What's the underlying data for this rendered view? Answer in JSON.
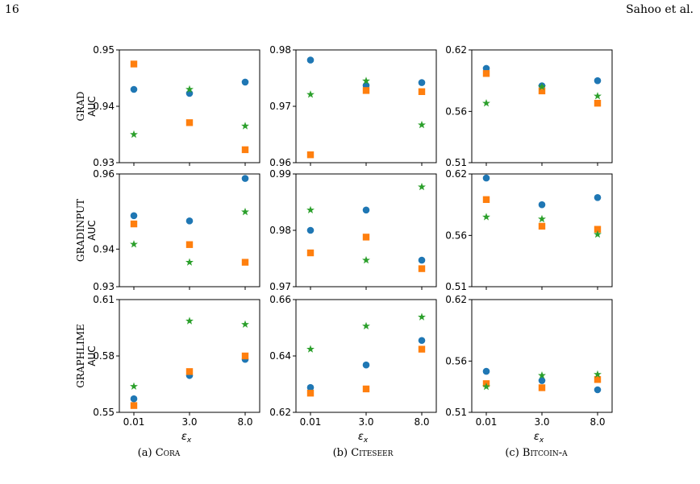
{
  "header": {
    "page_number": "16",
    "authors": "Sahoo et al."
  },
  "captions": [
    {
      "prefix": "(a) ",
      "name": "Cora"
    },
    {
      "prefix": "(b) ",
      "name": "Citeseer"
    },
    {
      "prefix": "(c) ",
      "name": "Bitcoin-α"
    }
  ],
  "colors": {
    "blue": "#1f77b4",
    "orange": "#ff7f0e",
    "green": "#2ca02c"
  },
  "chart_data": {
    "type": "scatter",
    "x_categories": [
      "0.01",
      "3.0",
      "8.0"
    ],
    "xlabel": "εx",
    "row_labels": [
      "GRAD",
      "GRADINPUT",
      "GRAPHLIME"
    ],
    "ylabel": "AUC",
    "series_markers": {
      "blue": "circle",
      "orange": "square",
      "green": "star"
    },
    "panels": [
      {
        "row": 0,
        "col": 0,
        "ylim": [
          0.93,
          0.95
        ],
        "yticks": [
          "0.93",
          "0.94",
          "0.95"
        ],
        "series": [
          {
            "color": "blue",
            "values": [
              0.943,
              0.9423,
              0.9443
            ]
          },
          {
            "color": "orange",
            "values": [
              0.9475,
              0.9371,
              0.9323
            ]
          },
          {
            "color": "green",
            "values": [
              0.935,
              0.943,
              0.9365
            ]
          }
        ]
      },
      {
        "row": 0,
        "col": 1,
        "ylim": [
          0.96,
          0.98
        ],
        "yticks": [
          "0.96",
          "0.97",
          "0.98"
        ],
        "series": [
          {
            "color": "blue",
            "values": [
              0.9782,
              0.9737,
              0.9742
            ]
          },
          {
            "color": "orange",
            "values": [
              0.9614,
              0.9728,
              0.9726
            ]
          },
          {
            "color": "green",
            "values": [
              0.9721,
              0.9745,
              0.9667
            ]
          }
        ]
      },
      {
        "row": 0,
        "col": 2,
        "ylim": [
          0.51,
          0.62
        ],
        "yticks": [
          "0.51",
          "0.56",
          "0.62"
        ],
        "series": [
          {
            "color": "blue",
            "values": [
              0.602,
              0.585,
              0.59
            ]
          },
          {
            "color": "orange",
            "values": [
              0.597,
              0.58,
              0.568
            ]
          },
          {
            "color": "green",
            "values": [
              0.568,
              0.584,
              0.575
            ]
          }
        ]
      },
      {
        "row": 1,
        "col": 0,
        "ylim": [
          0.93,
          0.96
        ],
        "yticks": [
          "0.93",
          "0.94",
          "0.96"
        ],
        "series": [
          {
            "color": "blue",
            "values": [
              0.9489,
              0.9475,
              0.9588
            ]
          },
          {
            "color": "orange",
            "values": [
              0.9467,
              0.9412,
              0.9365
            ]
          },
          {
            "color": "green",
            "values": [
              0.9413,
              0.9365,
              0.9499
            ]
          }
        ]
      },
      {
        "row": 1,
        "col": 1,
        "ylim": [
          0.97,
          0.99
        ],
        "yticks": [
          "0.97",
          "0.98",
          "0.99"
        ],
        "series": [
          {
            "color": "blue",
            "values": [
              0.98,
              0.9836,
              0.9747
            ]
          },
          {
            "color": "orange",
            "values": [
              0.976,
              0.9788,
              0.9732
            ]
          },
          {
            "color": "green",
            "values": [
              0.9836,
              0.9747,
              0.9877
            ]
          }
        ]
      },
      {
        "row": 1,
        "col": 2,
        "ylim": [
          0.51,
          0.62
        ],
        "yticks": [
          "0.51",
          "0.56",
          "0.62"
        ],
        "series": [
          {
            "color": "blue",
            "values": [
              0.616,
              0.59,
              0.597
            ]
          },
          {
            "color": "orange",
            "values": [
              0.595,
              0.569,
              0.566
            ]
          },
          {
            "color": "green",
            "values": [
              0.578,
              0.576,
              0.561
            ]
          }
        ]
      },
      {
        "row": 2,
        "col": 0,
        "ylim": [
          0.55,
          0.61
        ],
        "yticks": [
          "0.55",
          "0.58",
          "0.61"
        ],
        "series": [
          {
            "color": "blue",
            "values": [
              0.5572,
              0.5696,
              0.5782
            ]
          },
          {
            "color": "orange",
            "values": [
              0.5536,
              0.5717,
              0.58
            ]
          },
          {
            "color": "green",
            "values": [
              0.5638,
              0.5986,
              0.5968
            ]
          }
        ]
      },
      {
        "row": 2,
        "col": 1,
        "ylim": [
          0.62,
          0.66
        ],
        "yticks": [
          "0.62",
          "0.64",
          "0.66"
        ],
        "series": [
          {
            "color": "blue",
            "values": [
              0.6288,
              0.6368,
              0.6455
            ]
          },
          {
            "color": "orange",
            "values": [
              0.6268,
              0.6283,
              0.6424
            ]
          },
          {
            "color": "green",
            "values": [
              0.6424,
              0.6506,
              0.6538
            ]
          }
        ]
      },
      {
        "row": 2,
        "col": 2,
        "ylim": [
          0.51,
          0.62
        ],
        "yticks": [
          "0.51",
          "0.56",
          "0.62"
        ],
        "series": [
          {
            "color": "blue",
            "values": [
              0.55,
              0.541,
              0.532
            ]
          },
          {
            "color": "orange",
            "values": [
              0.538,
              0.534,
              0.542
            ]
          },
          {
            "color": "green",
            "values": [
              0.535,
              0.546,
              0.547
            ]
          }
        ]
      }
    ]
  }
}
